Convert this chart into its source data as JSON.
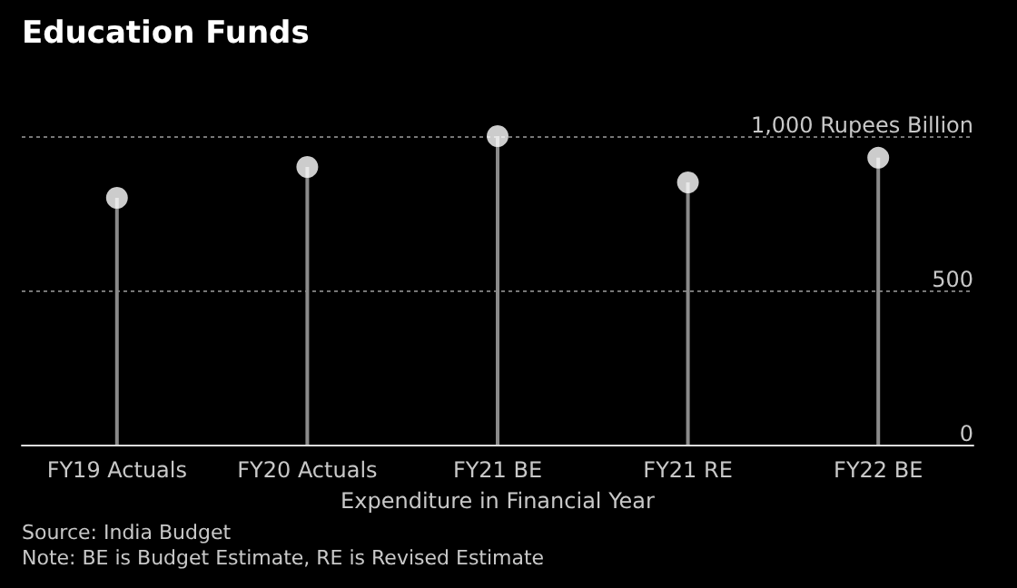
{
  "chart_data": {
    "type": "lollipop",
    "title": "Education Funds",
    "xlabel": "Expenditure in Financial Year",
    "categories": [
      "FY19 Actuals",
      "FY20 Actuals",
      "FY21 BE",
      "FY21 RE",
      "FY22 BE"
    ],
    "series": [
      {
        "color": "#ffffff",
        "values": [
          800,
          900,
          1000,
          850,
          930
        ]
      }
    ],
    "ylim": [
      0,
      1000
    ],
    "yticks": [
      0,
      500,
      {
        "value": 1000,
        "label": "1,000 Rupees Billion"
      }
    ],
    "grid": "y",
    "marker": "circle",
    "annotations": [
      "Source: India Budget",
      "Note: BE is Budget Estimate, RE is Revised Estimate"
    ]
  }
}
